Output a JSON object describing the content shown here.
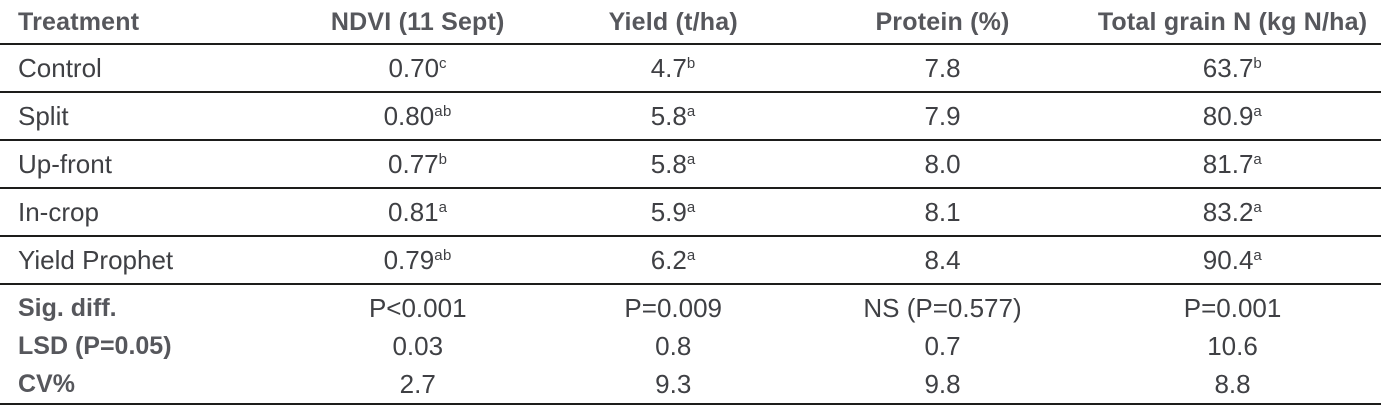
{
  "colors": {
    "header_text": "#56575C",
    "body_text": "#3F4044",
    "rule": "#1D1D1B",
    "background": "#FFFFFF"
  },
  "table": {
    "columns": [
      {
        "label": "Treatment"
      },
      {
        "label": "NDVI (11 Sept)"
      },
      {
        "label": "Yield (t/ha)"
      },
      {
        "label": "Protein (%)"
      },
      {
        "label": "Total grain N (kg N/ha)"
      }
    ],
    "rows": [
      {
        "label": "Control",
        "cells": [
          {
            "v": "0.70",
            "sup": "c"
          },
          {
            "v": "4.7",
            "sup": "b"
          },
          {
            "v": "7.8",
            "sup": ""
          },
          {
            "v": "63.7",
            "sup": "b"
          }
        ]
      },
      {
        "label": "Split",
        "cells": [
          {
            "v": "0.80",
            "sup": "ab"
          },
          {
            "v": "5.8",
            "sup": "a"
          },
          {
            "v": "7.9",
            "sup": ""
          },
          {
            "v": "80.9",
            "sup": "a"
          }
        ]
      },
      {
        "label": "Up-front",
        "cells": [
          {
            "v": "0.77",
            "sup": "b"
          },
          {
            "v": "5.8",
            "sup": "a"
          },
          {
            "v": "8.0",
            "sup": ""
          },
          {
            "v": "81.7",
            "sup": "a"
          }
        ]
      },
      {
        "label": "In-crop",
        "cells": [
          {
            "v": "0.81",
            "sup": "a"
          },
          {
            "v": "5.9",
            "sup": "a"
          },
          {
            "v": "8.1",
            "sup": ""
          },
          {
            "v": "83.2",
            "sup": "a"
          }
        ]
      },
      {
        "label": "Yield Prophet",
        "cells": [
          {
            "v": "0.79",
            "sup": "ab"
          },
          {
            "v": "6.2",
            "sup": "a"
          },
          {
            "v": "8.4",
            "sup": ""
          },
          {
            "v": "90.4",
            "sup": "a"
          }
        ]
      }
    ],
    "stats": [
      {
        "label": "Sig. diff.",
        "cells": [
          "P<0.001",
          "P=0.009",
          "NS (P=0.577)",
          "P=0.001"
        ]
      },
      {
        "label": "LSD (P=0.05)",
        "cells": [
          "0.03",
          "0.8",
          "0.7",
          "10.6"
        ]
      },
      {
        "label": "CV%",
        "cells": [
          "2.7",
          "9.3",
          "9.8",
          "8.8"
        ]
      }
    ]
  }
}
